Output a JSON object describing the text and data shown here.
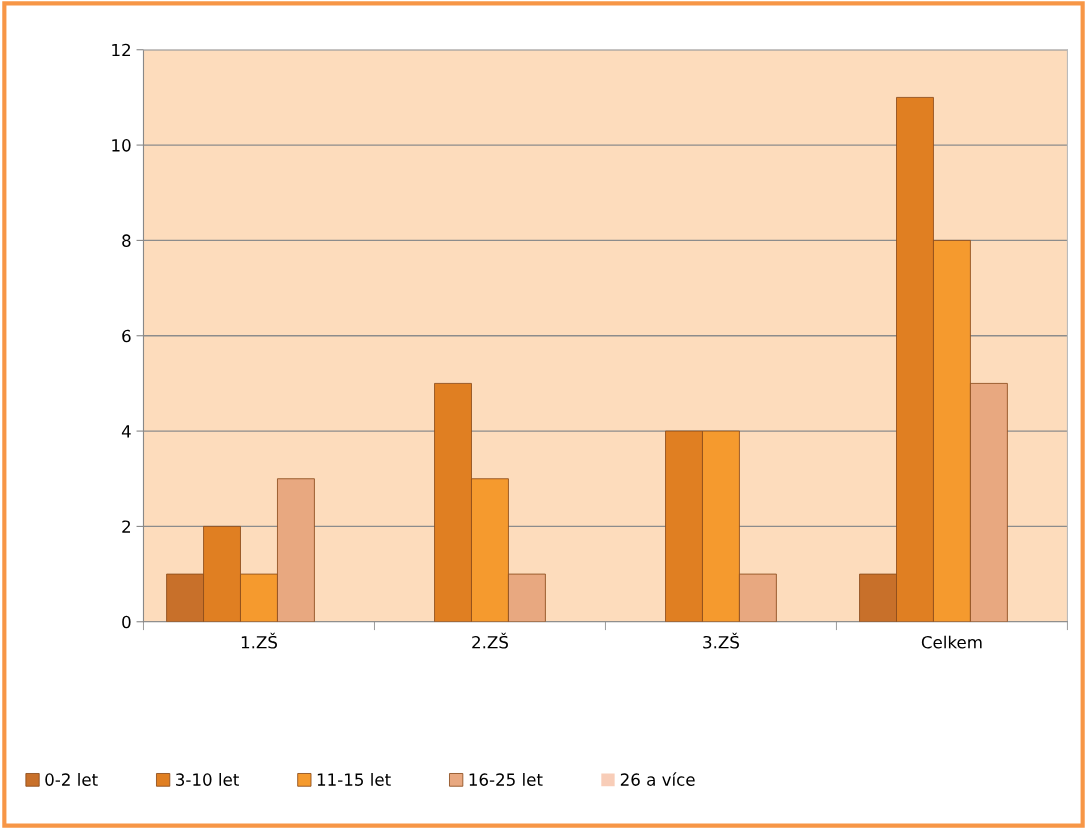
{
  "chart_data": {
    "type": "bar",
    "categories": [
      "1.ZŠ",
      "2.ZŠ",
      "3.ZŠ",
      "Celkem"
    ],
    "series": [
      {
        "name": "0-2 let",
        "color": "#c8702a",
        "values": [
          1,
          0,
          0,
          1
        ]
      },
      {
        "name": "3-10 let",
        "color": "#e07f22",
        "values": [
          2,
          5,
          4,
          11
        ]
      },
      {
        "name": "11-15 let",
        "color": "#f59a2e",
        "values": [
          1,
          3,
          4,
          8
        ]
      },
      {
        "name": "16-25 let",
        "color": "#e8a880",
        "values": [
          3,
          1,
          1,
          5
        ]
      },
      {
        "name": "26 a více",
        "color": "#f8cdb8",
        "values": [
          0,
          0,
          0,
          0
        ]
      }
    ],
    "ylim": [
      0,
      12
    ],
    "yticks": [
      0,
      2,
      4,
      6,
      8,
      10,
      12
    ],
    "grid": "y",
    "legend": "bottom"
  }
}
